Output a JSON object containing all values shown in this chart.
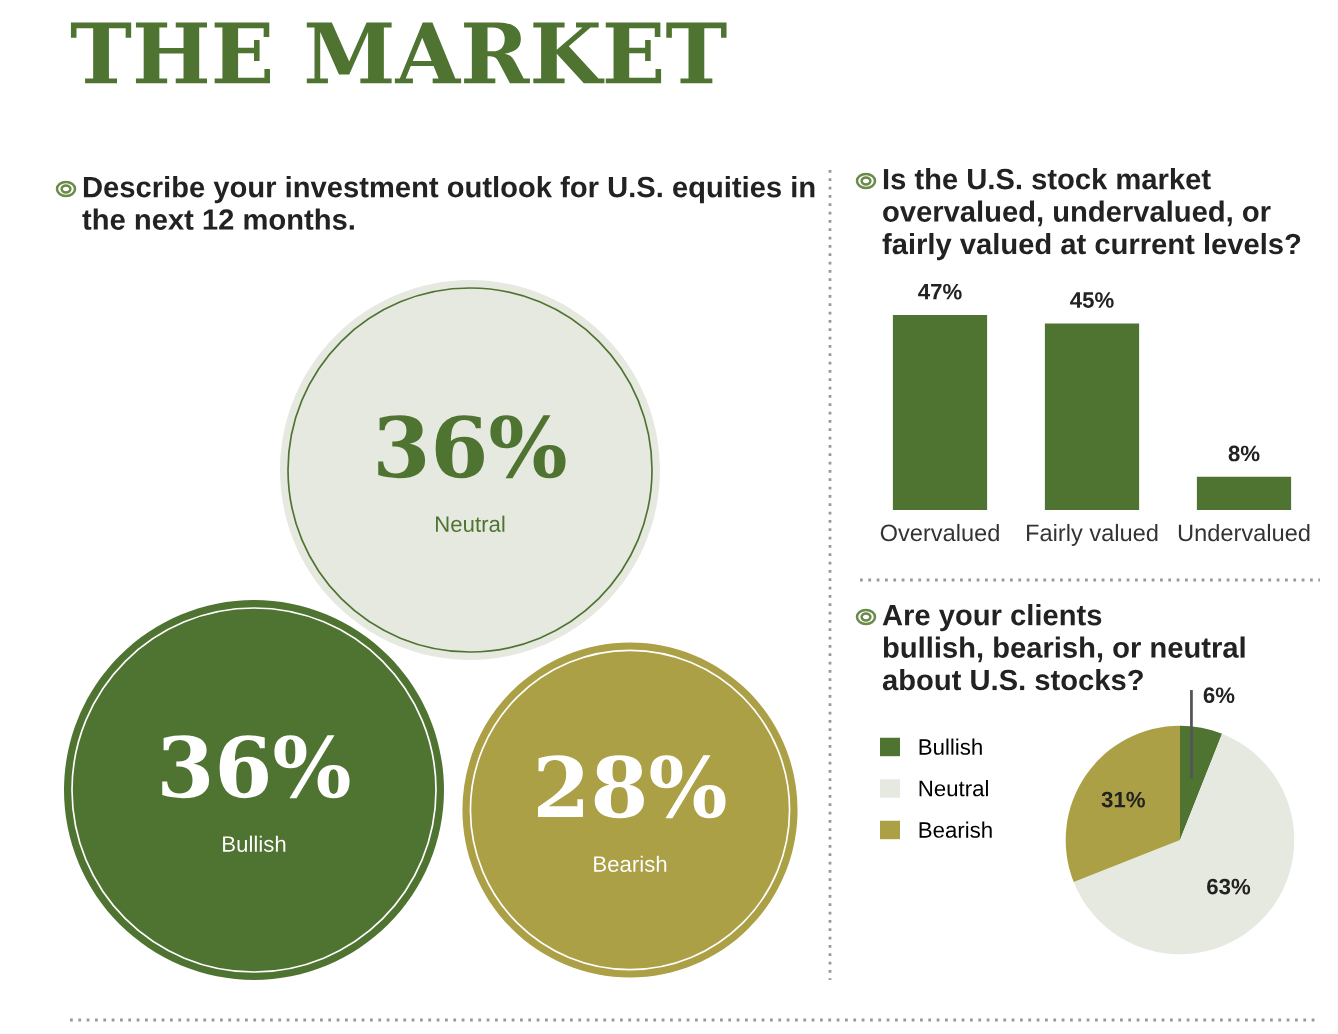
{
  "chart_data": [
    {
      "type": "other",
      "title": "THE MARKET"
    },
    {
      "type": "other",
      "title": "Describe your investment outlook for U.S. equities in\nthe next 12 months.",
      "categories": [
        "Neutral",
        "Bullish",
        "Bearish"
      ],
      "values": [
        36,
        36,
        28
      ],
      "value_labels": [
        "36%",
        "36%",
        "28%"
      ],
      "colors": [
        "#e6e9df",
        "#4f7331",
        "#aca046"
      ]
    },
    {
      "type": "bar",
      "title": "Is the U.S. stock market\novervalued, undervalued, or\nfairly valued at current levels?",
      "categories": [
        "Overvalued",
        "Fairly valued",
        "Undervalued"
      ],
      "values": [
        47,
        45,
        8
      ],
      "value_labels": [
        "47%",
        "45%",
        "8%"
      ],
      "color": "#4f7331"
    },
    {
      "type": "pie",
      "title": "Are your clients\nbullish, bearish, or neutral\nabout U.S. stocks?",
      "categories": [
        "Bullish",
        "Neutral",
        "Bearish"
      ],
      "values": [
        6,
        63,
        31
      ],
      "value_labels": [
        "6%",
        "63%",
        "31%"
      ],
      "colors": [
        "#4f7331",
        "#e6e9df",
        "#aca046"
      ],
      "legend": "left"
    }
  ]
}
